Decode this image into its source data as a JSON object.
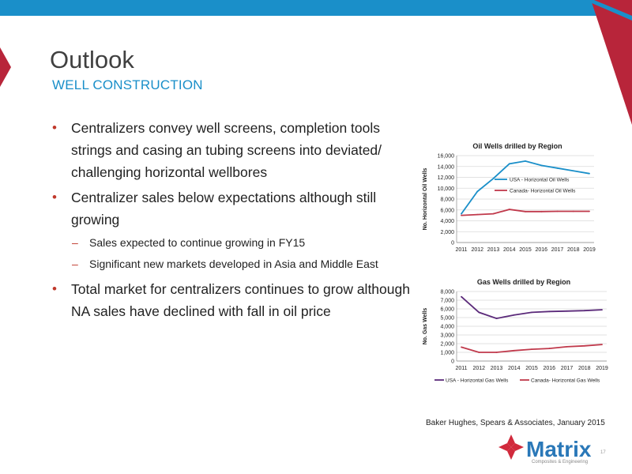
{
  "slide": {
    "title": "Outlook",
    "subtitle": "WELL CONSTRUCTION",
    "source": "Baker Hughes, Spears & Associates, January 2015",
    "page_number": "17",
    "colors": {
      "accent_blue": "#1a8fc9",
      "accent_red": "#b8253a"
    }
  },
  "bullets": [
    {
      "text": "Centralizers convey well screens, completion tools strings and casing an tubing screens into deviated/ challenging horizontal wellbores"
    },
    {
      "text": "Centralizer sales below expectations although still growing"
    },
    {
      "text": "Sales expected to continue growing in FY15"
    },
    {
      "text": "Significant new markets developed in Asia and Middle East"
    },
    {
      "text": "Total market for centralizers continues to grow although NA sales have declined with fall in oil price"
    }
  ],
  "logo": {
    "name": "Matrix",
    "tagline": "Composites & Engineering"
  },
  "chart_data": [
    {
      "type": "line",
      "title": "Oil Wells drilled by Region",
      "xlabel": "",
      "ylabel": "No. Horizontal Oil Wells",
      "x": [
        "2011",
        "2012",
        "2013",
        "2014",
        "2015",
        "2016",
        "2017",
        "2018",
        "2019"
      ],
      "ylim": [
        0,
        16000
      ],
      "yticks": [
        "0",
        "2,000",
        "4,000",
        "6,000",
        "8,000",
        "10,000",
        "12,000",
        "14,000",
        "16,000"
      ],
      "grid": true,
      "legend": "inside-right",
      "series": [
        {
          "name": "USA - Horizontal Oil Wells",
          "color": "#1a8fc9",
          "values": [
            5300,
            9400,
            11800,
            14500,
            15000,
            14200,
            13700,
            13200,
            12700
          ]
        },
        {
          "name": "Canada- Horizontal Oil Wells",
          "color": "#c0394b",
          "values": [
            5000,
            5150,
            5300,
            6100,
            5700,
            5700,
            5750,
            5750,
            5750
          ]
        }
      ]
    },
    {
      "type": "line",
      "title": "Gas Wells drilled by Region",
      "xlabel": "",
      "ylabel": "No. Gas Wells",
      "x": [
        "2011",
        "2012",
        "2013",
        "2014",
        "2015",
        "2016",
        "2017",
        "2018",
        "2019"
      ],
      "ylim": [
        0,
        8000
      ],
      "yticks": [
        "0",
        "1,000",
        "2,000",
        "3,000",
        "4,000",
        "5,000",
        "6,000",
        "7,000",
        "8,000"
      ],
      "grid": true,
      "legend": "bottom",
      "series": [
        {
          "name": "USA - Horizontal Gas Wells",
          "color": "#5b2a7a",
          "values": [
            7400,
            5600,
            4900,
            5300,
            5600,
            5700,
            5750,
            5800,
            5900
          ]
        },
        {
          "name": "Canada- Horizontal Gas Wells",
          "color": "#c0394b",
          "values": [
            1600,
            1000,
            1000,
            1200,
            1350,
            1450,
            1650,
            1750,
            1900
          ]
        }
      ]
    }
  ]
}
